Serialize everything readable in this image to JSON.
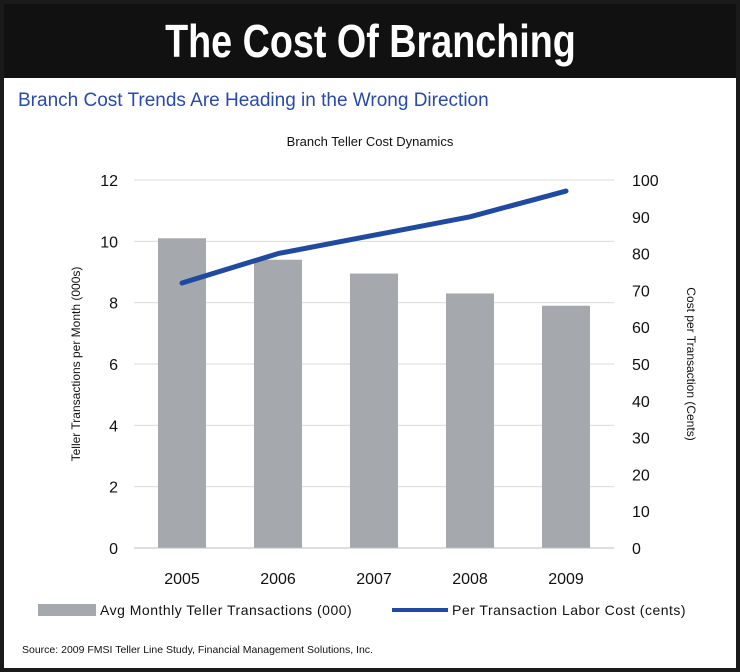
{
  "header": {
    "title": "The Cost Of Branching",
    "subtitle": "Branch Cost Trends Are Heading in the Wrong Direction"
  },
  "footer": {
    "source": "Source: 2009 FMSI Teller Line Study, Financial Management Solutions, Inc."
  },
  "colors": {
    "bar": "#a5a8ad",
    "line": "#1f4aa0",
    "subtitle": "#2a4aa8",
    "banner": "#111111"
  },
  "chart_data": {
    "type": "bar",
    "title": "Branch Teller Cost Dynamics",
    "categories": [
      "2005",
      "2006",
      "2007",
      "2008",
      "2009"
    ],
    "series": [
      {
        "name": "Avg Monthly Teller Transactions (000)",
        "type": "bar",
        "axis": "left",
        "values": [
          10.1,
          9.4,
          8.95,
          8.3,
          7.9
        ]
      },
      {
        "name": "Per Transaction Labor Cost (cents)",
        "type": "line",
        "axis": "right",
        "values": [
          72,
          80,
          85,
          90,
          97
        ]
      }
    ],
    "ylabel": "Teller Transactions per Month (000s)",
    "y2label": "Cost per Transaction (Cents)",
    "ylim": [
      0,
      12
    ],
    "y2lim": [
      0,
      100
    ],
    "yticks": [
      "0",
      "2",
      "4",
      "6",
      "8",
      "10",
      "12"
    ],
    "y2ticks": [
      "0",
      "10",
      "20",
      "30",
      "40",
      "50",
      "60",
      "70",
      "80",
      "90",
      "100"
    ],
    "grid": true,
    "legend": "bottom"
  }
}
